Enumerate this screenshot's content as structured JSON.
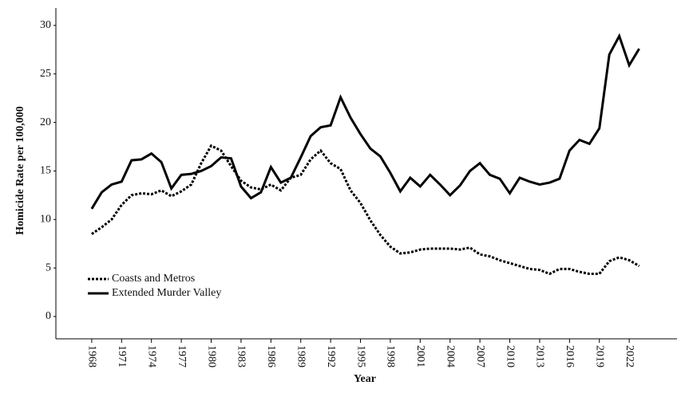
{
  "chart_data": {
    "type": "line",
    "x_label": "Year",
    "y_label": "Homicide Rate per 100,000",
    "x": [
      1968,
      1969,
      1970,
      1971,
      1972,
      1973,
      1974,
      1975,
      1976,
      1977,
      1978,
      1979,
      1980,
      1981,
      1982,
      1983,
      1984,
      1985,
      1986,
      1987,
      1988,
      1989,
      1990,
      1991,
      1992,
      1993,
      1994,
      1995,
      1996,
      1997,
      1998,
      1999,
      2000,
      2001,
      2002,
      2003,
      2004,
      2005,
      2006,
      2007,
      2008,
      2009,
      2010,
      2011,
      2012,
      2013,
      2014,
      2015,
      2016,
      2017,
      2018,
      2019,
      2020,
      2021,
      2022,
      2023
    ],
    "series": [
      {
        "name": "Coasts and Metros",
        "color": "#000000",
        "line_style": "dotted",
        "values": [
          8.5,
          9.2,
          10.0,
          11.5,
          12.5,
          12.7,
          12.6,
          13.0,
          12.4,
          12.9,
          13.6,
          15.8,
          17.6,
          17.1,
          15.5,
          14.0,
          13.3,
          13.1,
          13.6,
          13.0,
          14.3,
          14.6,
          16.2,
          17.1,
          15.8,
          15.2,
          13.0,
          11.7,
          9.9,
          8.4,
          7.2,
          6.5,
          6.6,
          6.9,
          7.0,
          7.0,
          7.0,
          6.9,
          7.1,
          6.4,
          6.2,
          5.8,
          5.5,
          5.2,
          4.9,
          4.8,
          4.4,
          4.9,
          4.9,
          4.6,
          4.4,
          4.4,
          5.7,
          6.1,
          5.8,
          5.2
        ]
      },
      {
        "name": "Extended Murder Valley",
        "color": "#000000",
        "line_style": "solid",
        "values": [
          11.1,
          12.8,
          13.6,
          13.9,
          16.1,
          16.2,
          16.8,
          15.9,
          13.2,
          14.6,
          14.7,
          15.0,
          15.5,
          16.4,
          16.3,
          13.4,
          12.2,
          12.8,
          15.4,
          13.8,
          14.3,
          16.4,
          18.6,
          19.5,
          19.7,
          22.6,
          20.5,
          18.8,
          17.3,
          16.5,
          14.8,
          12.9,
          14.3,
          13.4,
          14.6,
          13.6,
          12.5,
          13.5,
          15.0,
          15.8,
          14.6,
          14.2,
          12.7,
          14.3,
          13.9,
          13.6,
          13.8,
          14.2,
          17.1,
          18.2,
          17.8,
          19.4,
          27.0,
          28.9,
          25.9,
          27.6
        ]
      }
    ],
    "xlim": [
      1964.4,
      2026.8
    ],
    "xticks": [
      1968,
      1971,
      1974,
      1977,
      1980,
      1983,
      1986,
      1989,
      1992,
      1995,
      1998,
      2001,
      2004,
      2007,
      2010,
      2013,
      2016,
      2019,
      2022
    ],
    "ylim": [
      -2.3,
      31.8
    ],
    "yticks": [
      0,
      5,
      10,
      15,
      20,
      25,
      30
    ],
    "grid": false,
    "legend": "lower left"
  }
}
